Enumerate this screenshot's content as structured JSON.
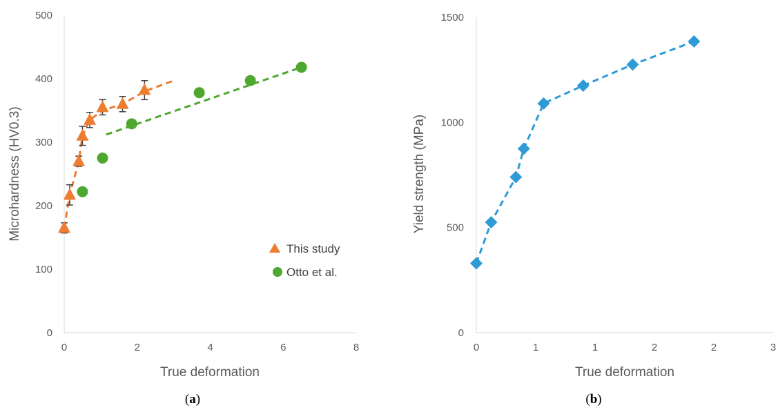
{
  "chart_data": [
    {
      "type": "scatter",
      "caption": "a",
      "xlabel": "True deformation",
      "ylabel": "Microhardness (HV0.3)",
      "xlim": [
        0,
        8
      ],
      "ylim": [
        0,
        500
      ],
      "xticks": [
        "0",
        "2",
        "4",
        "6",
        "8"
      ],
      "yticks": [
        "0",
        "100",
        "200",
        "300",
        "400",
        "500"
      ],
      "grid": false,
      "legend_position": "bottom-right",
      "series": [
        {
          "name": "This study",
          "color": "#ED7D31",
          "marker": "triangle",
          "x": [
            0,
            0.15,
            0.4,
            0.5,
            0.7,
            1.05,
            1.6,
            2.2
          ],
          "y": [
            165,
            217,
            270,
            310,
            335,
            355,
            360,
            382
          ],
          "error": [
            8,
            16,
            8,
            15,
            12,
            12,
            12,
            15
          ],
          "trend": {
            "x": [
              0,
              0.15,
              0.4,
              0.5,
              0.7,
              1.05,
              1.6,
              2.2,
              3.0
            ],
            "y": [
              165,
              217,
              270,
              310,
              335,
              350,
              360,
              380,
              397
            ]
          }
        },
        {
          "name": "Otto et al.",
          "color": "#4EA72E",
          "marker": "circle",
          "x": [
            0.5,
            1.05,
            1.85,
            3.7,
            5.1,
            6.5
          ],
          "y": [
            222,
            275,
            329,
            378,
            397,
            418
          ],
          "trend": {
            "x": [
              1.15,
              6.5
            ],
            "y": [
              312,
              418
            ]
          }
        }
      ]
    },
    {
      "type": "line",
      "caption": "b",
      "xlabel": "True deformation",
      "ylabel": "Yield strength (MPa)",
      "xlim": [
        0,
        3
      ],
      "ylim": [
        0,
        1500
      ],
      "xticks": [
        "0",
        "1",
        "1",
        "2",
        "2",
        "3"
      ],
      "yticks": [
        "0",
        "500",
        "1000",
        "1500"
      ],
      "grid": false,
      "series": [
        {
          "color": "#2E9BD6",
          "marker": "diamond",
          "x": [
            0,
            0.15,
            0.4,
            0.48,
            0.68,
            1.08,
            1.58,
            2.2
          ],
          "y": [
            330,
            525,
            740,
            875,
            1090,
            1175,
            1275,
            1385
          ]
        }
      ]
    }
  ]
}
